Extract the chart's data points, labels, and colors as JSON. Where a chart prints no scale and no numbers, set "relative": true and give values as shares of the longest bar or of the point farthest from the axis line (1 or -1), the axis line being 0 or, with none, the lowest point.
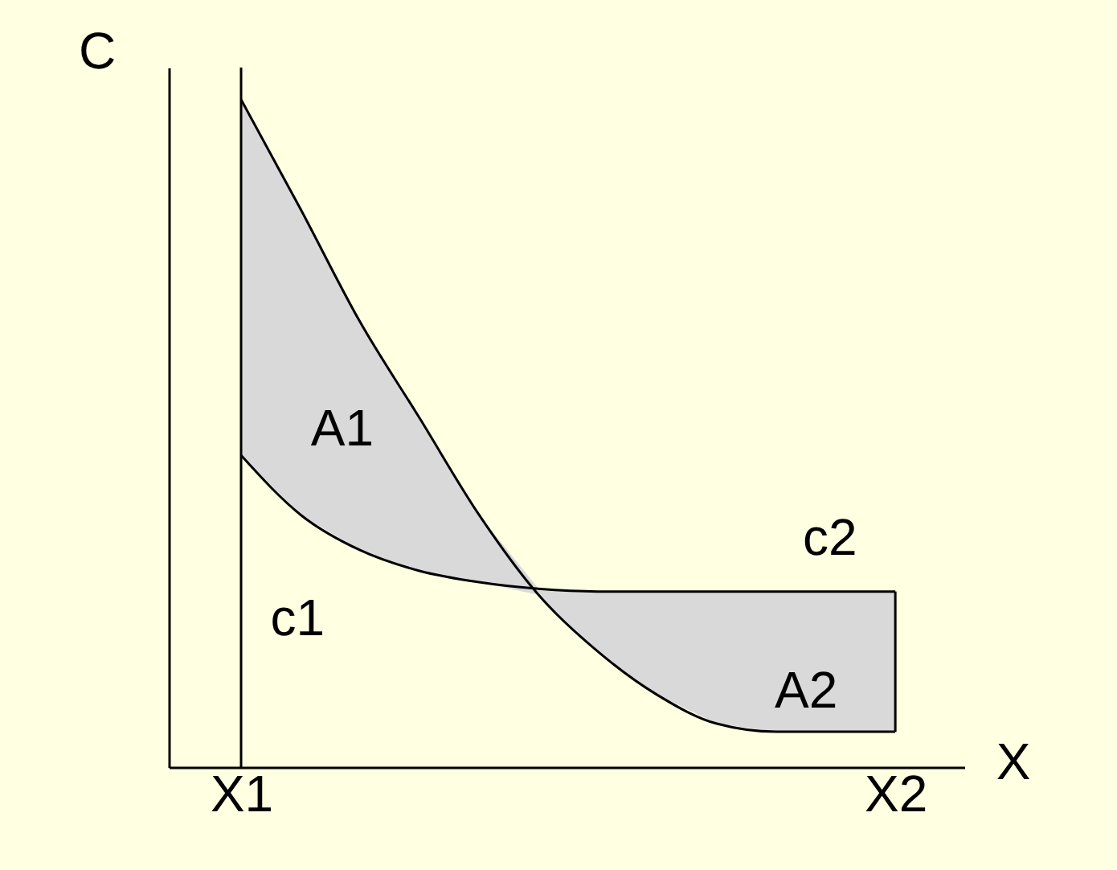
{
  "chart_data": {
    "type": "line",
    "relative": true,
    "xlabel": "X",
    "ylabel": "C",
    "categories": [
      "X1",
      null,
      null,
      null,
      null,
      null,
      null,
      null,
      null,
      null,
      null,
      "X2"
    ],
    "series": [
      {
        "color": "#000000",
        "values": [
          1.0,
          0.836,
          0.667,
          0.523,
          0.378,
          0.258,
          0.173,
          0.108,
          0.065,
          0.053,
          0.053,
          0.053
        ],
        "lower": [
          0.467,
          0.378,
          0.325,
          0.294,
          0.277,
          0.258,
          0.173,
          0.108,
          0.065,
          0.053,
          0.053,
          0.053
        ],
        "upper": [
          1.0,
          0.836,
          0.667,
          0.523,
          0.378,
          0.267,
          0.263,
          0.263,
          0.263,
          0.263,
          0.263,
          0.263
        ]
      },
      {
        "color": "#000000",
        "values": [
          0.467,
          0.378,
          0.325,
          0.294,
          0.277,
          0.267,
          0.263,
          0.263,
          0.263,
          0.263,
          0.263,
          0.263
        ]
      }
    ],
    "ref_lines": [
      {
        "axis": "x",
        "value": "X1",
        "color": "#000000"
      }
    ],
    "annotations": [
      "A1",
      "c1",
      "c2",
      "A2"
    ],
    "grid": false
  }
}
